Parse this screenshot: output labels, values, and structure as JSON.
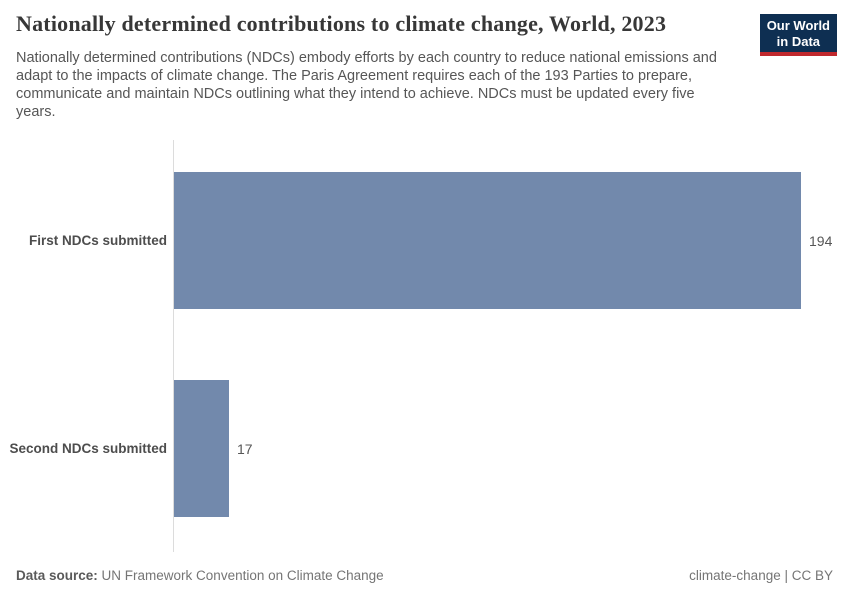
{
  "header": {
    "title": "Nationally determined contributions to climate change, World, 2023",
    "subtitle_lines": [
      "Nationally determined contributions (NDCs) embody efforts by each country to reduce national emissions and",
      "adapt to the impacts of climate change. The Paris Agreement requires each of the 193 Parties to prepare,",
      "communicate and maintain NDCs outlining what they intend to achieve. NDCs must be updated every five",
      "years."
    ],
    "logo": {
      "line1": "Our World",
      "line2": "in Data"
    }
  },
  "chart_data": {
    "type": "bar",
    "orientation": "horizontal",
    "title": "Nationally determined contributions to climate change, World, 2023",
    "categories": [
      "First NDCs submitted",
      "Second NDCs submitted"
    ],
    "values": [
      194,
      17
    ],
    "value_labels": [
      "194",
      "17"
    ],
    "xlim": [
      0,
      194
    ],
    "xlabel": "",
    "ylabel": "",
    "grid": false,
    "legend": false,
    "bar_color": "#7289ac",
    "axis_color": "#dcdcdc"
  },
  "footer": {
    "datasource_label": "Data source:",
    "datasource_value": "UN Framework Convention on Climate Change",
    "license": "climate-change | CC BY"
  },
  "colors": {
    "logo_navy": "#0e2f52",
    "logo_red": "#c0282d",
    "bar": "#7289ac",
    "title_text": "#373737",
    "body_text": "#565656"
  }
}
